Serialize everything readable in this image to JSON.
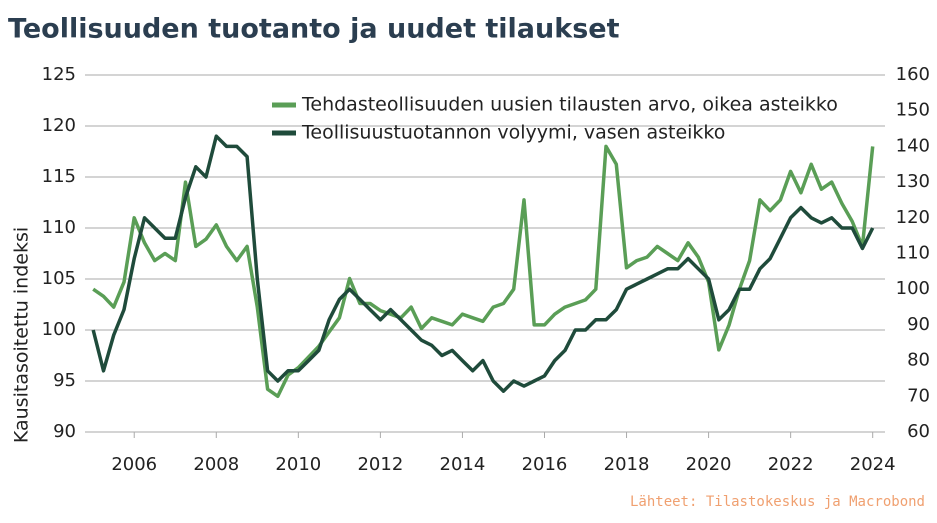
{
  "chart_data": {
    "type": "line",
    "title": "Teollisuuden tuotanto ja uudet tilaukset",
    "y_label": "Kausitasoitettu indeksi",
    "source": "Lähteet: Tilastokeskus ja Macrobond",
    "grid": true,
    "xlim": [
      2004.8,
      2024.3
    ],
    "xticks": [
      2006,
      2008,
      2010,
      2012,
      2014,
      2016,
      2018,
      2020,
      2022,
      2024
    ],
    "ylim": [
      90,
      125
    ],
    "yticks": [
      90,
      95,
      100,
      105,
      110,
      115,
      120,
      125
    ],
    "y2lim": [
      60,
      160
    ],
    "y2ticks": [
      60,
      70,
      80,
      90,
      100,
      110,
      120,
      130,
      140,
      150,
      160
    ],
    "x": [
      2005,
      2005.25,
      2005.5,
      2005.75,
      2006,
      2006.25,
      2006.5,
      2006.75,
      2007,
      2007.25,
      2007.5,
      2007.75,
      2008,
      2008.25,
      2008.5,
      2008.75,
      2009,
      2009.25,
      2009.5,
      2009.75,
      2010,
      2010.25,
      2010.5,
      2010.75,
      2011,
      2011.25,
      2011.5,
      2011.75,
      2012,
      2012.25,
      2012.5,
      2012.75,
      2013,
      2013.25,
      2013.5,
      2013.75,
      2014,
      2014.25,
      2014.5,
      2014.75,
      2015,
      2015.25,
      2015.5,
      2015.75,
      2016,
      2016.25,
      2016.5,
      2016.75,
      2017,
      2017.25,
      2017.5,
      2017.75,
      2018,
      2018.25,
      2018.5,
      2018.75,
      2019,
      2019.25,
      2019.5,
      2019.75,
      2020,
      2020.25,
      2020.5,
      2020.75,
      2021,
      2021.25,
      2021.5,
      2021.75,
      2022,
      2022.25,
      2022.5,
      2022.75,
      2023,
      2023.25,
      2023.5,
      2023.75,
      2024
    ],
    "series": [
      {
        "name": "Tehdasteollisuuden uusien tilausten arvo, oikea asteikko",
        "color": "#5a9e56",
        "axis": "y2",
        "values": [
          100,
          98,
          95,
          102,
          120,
          113,
          108,
          110,
          108,
          130,
          112,
          114,
          118,
          112,
          108,
          112,
          95,
          72,
          70,
          76,
          78,
          81,
          84,
          88,
          92,
          103,
          96,
          96,
          94,
          93,
          92,
          95,
          89,
          92,
          91,
          90,
          93,
          92,
          91,
          95,
          96,
          100,
          125,
          90,
          90,
          93,
          95,
          96,
          97,
          100,
          140,
          135,
          106,
          108,
          109,
          112,
          110,
          108,
          113,
          109,
          102,
          83,
          90,
          100,
          108,
          125,
          122,
          125,
          133,
          127,
          135,
          128,
          130,
          124,
          119,
          112,
          140
        ]
      },
      {
        "name": "Teollisuustuotannon volyymi, vasen asteikko",
        "color": "#1f4b3b",
        "axis": "y",
        "values": [
          100,
          96,
          99.5,
          102,
          107,
          111,
          110,
          109,
          109,
          113,
          116,
          115,
          119,
          118,
          118,
          117,
          105,
          96,
          95,
          96,
          96,
          97,
          98,
          101,
          103,
          104,
          103,
          102,
          101,
          102,
          101,
          100,
          99,
          98.5,
          97.5,
          98,
          97,
          96,
          97,
          95,
          94,
          95,
          94.5,
          95,
          95.5,
          97,
          98,
          100,
          100,
          101,
          101,
          102,
          104,
          104.5,
          105,
          105.5,
          106,
          106,
          107,
          106,
          105,
          101,
          102,
          104,
          104,
          106,
          107,
          109,
          111,
          112,
          111,
          110.5,
          111,
          110,
          110,
          108,
          110
        ]
      }
    ]
  }
}
